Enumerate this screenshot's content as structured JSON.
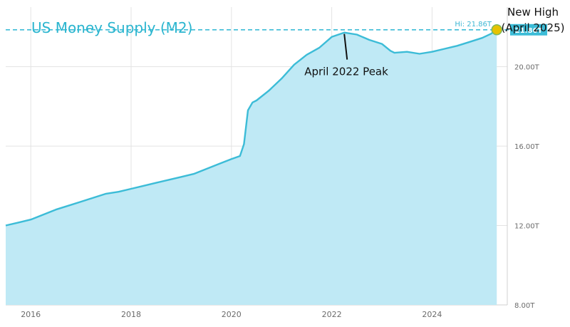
{
  "chart_data": {
    "type": "area",
    "title": "US Money Supply (M2)",
    "xlabel": "",
    "ylabel": "",
    "x_ticks": [
      "2016",
      "2018",
      "2020",
      "2022",
      "2024"
    ],
    "y_ticks": [
      "8.00T",
      "12.00T",
      "16.00T",
      "20.00T"
    ],
    "xlim": [
      2015.5,
      2025.5
    ],
    "ylim": [
      8,
      23
    ],
    "grid": true,
    "series": [
      {
        "x": [
          2015.5,
          2015.75,
          2016.0,
          2016.25,
          2016.5,
          2016.75,
          2017.0,
          2017.25,
          2017.5,
          2017.75,
          2018.0,
          2018.25,
          2018.5,
          2018.75,
          2019.0,
          2019.25,
          2019.5,
          2019.75,
          2020.0,
          2020.17,
          2020.25,
          2020.33,
          2020.42,
          2020.5,
          2020.75,
          2021.0,
          2021.25,
          2021.5,
          2021.75,
          2022.0,
          2022.25,
          2022.5,
          2022.75,
          2023.0,
          2023.17,
          2023.25,
          2023.5,
          2023.75,
          2024.0,
          2024.25,
          2024.5,
          2024.75,
          2025.0,
          2025.17,
          2025.29
        ],
        "values": [
          12.0,
          12.15,
          12.3,
          12.55,
          12.8,
          13.0,
          13.2,
          13.4,
          13.6,
          13.7,
          13.85,
          14.0,
          14.15,
          14.3,
          14.45,
          14.6,
          14.85,
          15.1,
          15.35,
          15.5,
          16.1,
          17.8,
          18.2,
          18.3,
          18.8,
          19.4,
          20.1,
          20.6,
          20.95,
          21.5,
          21.72,
          21.62,
          21.35,
          21.15,
          20.8,
          20.7,
          20.75,
          20.65,
          20.75,
          20.9,
          21.05,
          21.25,
          21.45,
          21.65,
          21.86
        ]
      }
    ],
    "high_line": {
      "value": 21.86,
      "label": "Hi: 21.86T"
    },
    "current_value_label": "21.86T",
    "annotations": [
      {
        "text": "April 2022 Peak",
        "x": 2022.25,
        "y": 21.72
      },
      {
        "text": "New High",
        "x": 2025.29,
        "y": 21.86
      },
      {
        "text": "(April 2025)",
        "x": 2025.29,
        "y": 21.86
      }
    ],
    "colors": {
      "line": "#3cbcd7",
      "fill": "#bfe9f5",
      "grid": "#e3e3e3",
      "title": "#2bb5cf",
      "badge": "#3cbcd7",
      "marker": "#e6c200"
    }
  }
}
